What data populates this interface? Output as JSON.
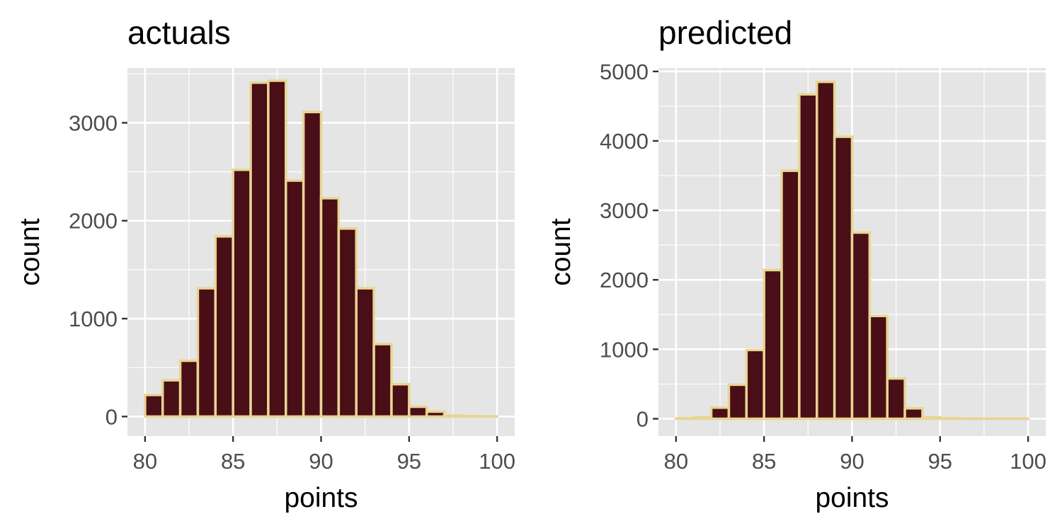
{
  "chart_data": [
    {
      "type": "bar",
      "title": "actuals",
      "xlabel": "points",
      "ylabel": "count",
      "xlim": [
        79,
        101
      ],
      "ylim": [
        -200,
        3560
      ],
      "x_ticks": [
        80,
        85,
        90,
        95,
        100
      ],
      "x_tick_labels": [
        "80",
        "85",
        "90",
        "95",
        "100"
      ],
      "y_ticks": [
        0,
        1000,
        2000,
        3000
      ],
      "y_tick_labels": [
        "0",
        "1000",
        "2000",
        "3000"
      ],
      "bin_edges": [
        80,
        81,
        82,
        83,
        84,
        85,
        86,
        87,
        88,
        89,
        90,
        91,
        92,
        93,
        94,
        95,
        96,
        97,
        98,
        99,
        100
      ],
      "values": [
        220,
        370,
        570,
        1310,
        1840,
        2520,
        3410,
        3430,
        2410,
        3110,
        2230,
        1920,
        1310,
        740,
        330,
        100,
        50,
        10,
        5,
        2
      ],
      "grid": true,
      "colors": {
        "panel": "#e5e5e5",
        "grid": "#ffffff",
        "bar_fill": "#4a0e17",
        "bar_outline": "#e8d592",
        "axis_text": "#4d4d4d",
        "title_text": "#000000"
      }
    },
    {
      "type": "bar",
      "title": "predicted",
      "xlabel": "points",
      "ylabel": "count",
      "xlim": [
        79,
        101
      ],
      "ylim": [
        -250,
        5050
      ],
      "x_ticks": [
        80,
        85,
        90,
        95,
        100
      ],
      "x_tick_labels": [
        "80",
        "85",
        "90",
        "95",
        "100"
      ],
      "y_ticks": [
        0,
        1000,
        2000,
        3000,
        4000,
        5000
      ],
      "y_tick_labels": [
        "0",
        "1000",
        "2000",
        "3000",
        "4000",
        "5000"
      ],
      "bin_edges": [
        80,
        81,
        82,
        83,
        84,
        85,
        86,
        87,
        88,
        89,
        90,
        91,
        92,
        93,
        94,
        95,
        96,
        97,
        98,
        99,
        100
      ],
      "values": [
        5,
        20,
        160,
        490,
        990,
        2140,
        3570,
        4670,
        4850,
        4060,
        2680,
        1480,
        580,
        150,
        20,
        5,
        2,
        1,
        1,
        1
      ],
      "grid": true,
      "colors": {
        "panel": "#e5e5e5",
        "grid": "#ffffff",
        "bar_fill": "#4a0e17",
        "bar_outline": "#e8d592",
        "axis_text": "#4d4d4d",
        "title_text": "#000000"
      }
    }
  ]
}
